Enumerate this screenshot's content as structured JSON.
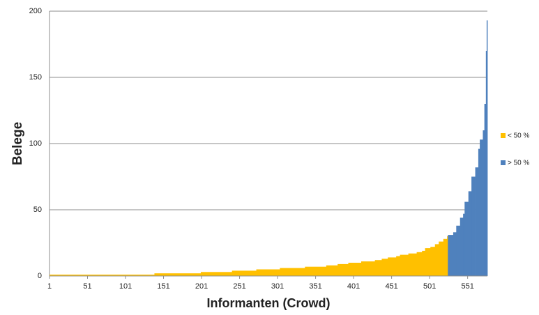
{
  "chart_data": {
    "type": "step-area",
    "x_label": "Informanten (Crowd)",
    "y_label": "Belege",
    "xlim": [
      1,
      577
    ],
    "xticks": [
      1,
      51,
      101,
      151,
      201,
      251,
      301,
      351,
      401,
      451,
      501,
      551
    ],
    "ylim": [
      0,
      200
    ],
    "yticks": [
      0,
      50,
      100,
      150,
      200
    ],
    "grid": true,
    "legend": "right",
    "series": [
      {
        "name": "< 50 %",
        "color": "#ffc000",
        "x": [
          1,
          139,
          200,
          241,
          273,
          304,
          337,
          365,
          380,
          394,
          411,
          429,
          438,
          446,
          457,
          462,
          473,
          484,
          491,
          495,
          502,
          508,
          513,
          519,
          524
        ],
        "values": [
          1,
          2,
          3,
          4,
          5,
          6,
          7,
          8,
          9,
          10,
          11,
          12,
          13,
          14,
          15,
          16,
          17,
          18,
          19,
          21,
          22,
          24,
          26,
          28,
          30
        ]
      },
      {
        "name": "> 50 %",
        "color": "#4f81bd",
        "x": [
          525,
          532,
          536,
          541,
          545,
          547,
          552,
          556,
          561,
          565,
          567,
          571,
          573,
          575,
          576
        ],
        "values": [
          31,
          33,
          38,
          44,
          47,
          56,
          64,
          75,
          82,
          96,
          103,
          110,
          130,
          170,
          193
        ]
      }
    ]
  }
}
